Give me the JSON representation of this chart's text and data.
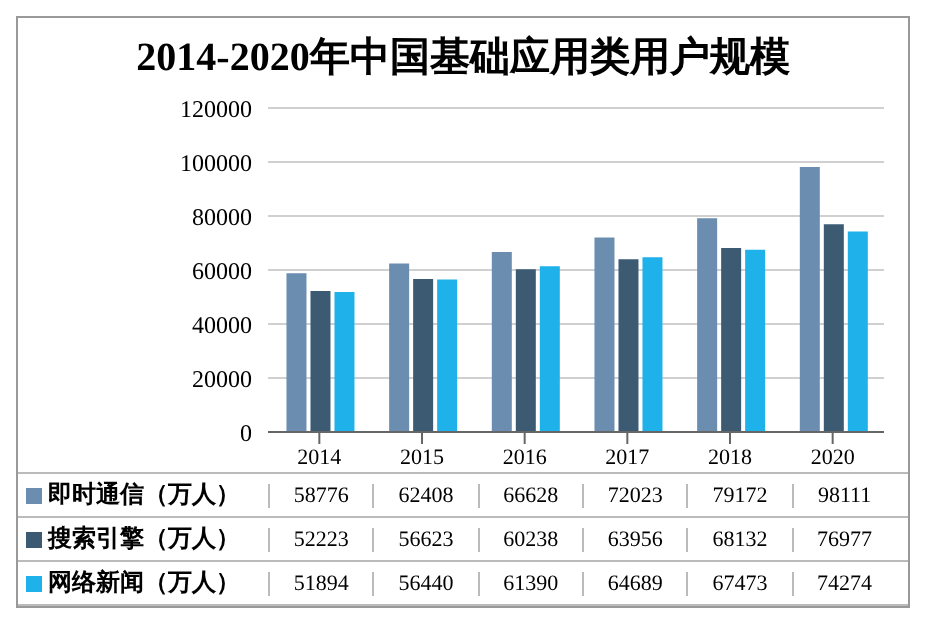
{
  "chart_data": {
    "type": "bar",
    "title": "2014-2020年中国基础应用类用户规模",
    "categories": [
      "2014",
      "2015",
      "2016",
      "2017",
      "2018",
      "2020"
    ],
    "series": [
      {
        "name": "即时通信（万人）",
        "color": "#6a8db0",
        "values": [
          58776,
          62408,
          66628,
          72023,
          79172,
          98111
        ]
      },
      {
        "name": "搜索引擎（万人）",
        "color": "#3d5a73",
        "values": [
          52223,
          56623,
          60238,
          63956,
          68132,
          76977
        ]
      },
      {
        "name": "网络新闻（万人）",
        "color": "#1eb1ea",
        "values": [
          51894,
          56440,
          61390,
          64689,
          67473,
          74274
        ]
      }
    ],
    "ylim": [
      0,
      120000
    ],
    "yticks": [
      0,
      20000,
      40000,
      60000,
      80000,
      100000,
      120000
    ],
    "grid": "y",
    "legend": "bottom",
    "data_labels": true
  }
}
